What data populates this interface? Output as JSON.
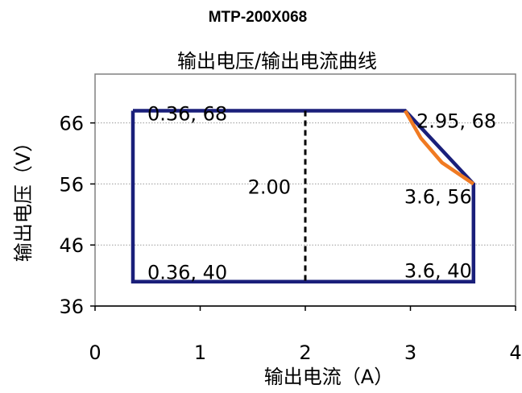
{
  "chart_data": {
    "type": "line",
    "model": "MTP-200X068",
    "title": "输出电压/输出电流曲线",
    "xlabel": "输出电流（A）",
    "ylabel": "输出电压（V）",
    "xlim": [
      0,
      4
    ],
    "ylim": [
      36,
      74
    ],
    "x_ticks": [
      0,
      1,
      2,
      3,
      4
    ],
    "y_ticks": [
      36,
      46,
      56,
      66
    ],
    "grid": "horizontal dotted",
    "series": [
      {
        "color": "#1a1f7a",
        "style": "solid",
        "points": [
          [
            0.36,
            68
          ],
          [
            2.95,
            68
          ],
          [
            3.6,
            56
          ],
          [
            3.6,
            40
          ],
          [
            0.36,
            40
          ],
          [
            0.36,
            68
          ]
        ]
      },
      {
        "color": "#f07a22",
        "style": "solid",
        "points": [
          [
            2.95,
            68
          ],
          [
            3.1,
            63.5
          ],
          [
            3.3,
            59.5
          ],
          [
            3.6,
            56
          ]
        ]
      },
      {
        "color": "#000000",
        "style": "dashed",
        "points": [
          [
            2.0,
            68
          ],
          [
            2.0,
            40
          ]
        ]
      }
    ],
    "annotations": [
      {
        "text": "0.36, 68",
        "x": 0.36,
        "y": 68
      },
      {
        "text": "2.95, 68",
        "x": 2.95,
        "y": 68
      },
      {
        "text": "2.00",
        "x": 2.0,
        "y": 56
      },
      {
        "text": "3.6, 56",
        "x": 3.6,
        "y": 56
      },
      {
        "text": "0.36, 40",
        "x": 0.36,
        "y": 40
      },
      {
        "text": "3.6, 40",
        "x": 3.6,
        "y": 40
      }
    ]
  }
}
